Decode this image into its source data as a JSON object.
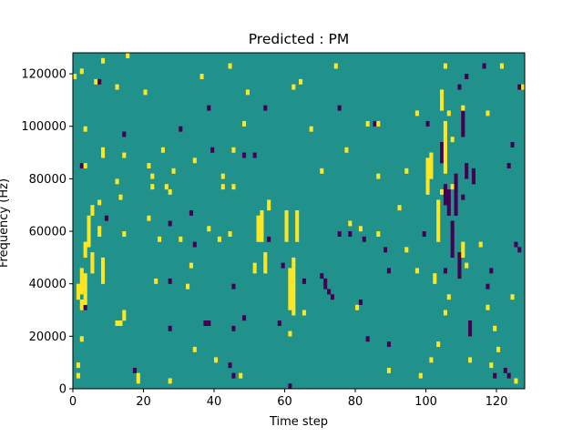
{
  "chart_data": {
    "type": "heatmap",
    "title": "Predicted : PM",
    "xlabel": "Time step",
    "ylabel": "Frequency (Hz)",
    "xlim": [
      0,
      128
    ],
    "ylim": [
      0,
      128000
    ],
    "x_ticks": [
      0,
      20,
      40,
      60,
      80,
      100,
      120
    ],
    "x_tick_labels": [
      "0",
      "20",
      "40",
      "60",
      "80",
      "100",
      "120"
    ],
    "y_ticks": [
      0,
      20000,
      40000,
      60000,
      80000,
      100000,
      120000
    ],
    "y_tick_labels": [
      "0",
      "20000",
      "40000",
      "60000",
      "80000",
      "100000",
      "120000"
    ],
    "grid": false,
    "legend": "none",
    "colormap": "viridis",
    "value_levels": [
      -1,
      0,
      1
    ],
    "colors": {
      "-1": "#440154",
      "0": "#21918c",
      "1": "#fde725"
    },
    "background_value": 0,
    "n_time_steps": 128,
    "n_freq_bins": 64,
    "freq_bin_width": 2000,
    "cells_high": [
      [
        1,
        4
      ],
      [
        1,
        2
      ],
      [
        1,
        19
      ],
      [
        1,
        18
      ],
      [
        1,
        17
      ],
      [
        2,
        22
      ],
      [
        2,
        21
      ],
      [
        2,
        20
      ],
      [
        2,
        19
      ],
      [
        2,
        18
      ],
      [
        2,
        16
      ],
      [
        2,
        15
      ],
      [
        3,
        21
      ],
      [
        3,
        20
      ],
      [
        3,
        19
      ],
      [
        3,
        18
      ],
      [
        3,
        17
      ],
      [
        3,
        16
      ],
      [
        3,
        27
      ],
      [
        3,
        26
      ],
      [
        4,
        32
      ],
      [
        4,
        31
      ],
      [
        4,
        30
      ],
      [
        4,
        29
      ],
      [
        4,
        28
      ],
      [
        4,
        27
      ],
      [
        5,
        34
      ],
      [
        5,
        33
      ],
      [
        5,
        25
      ],
      [
        5,
        24
      ],
      [
        5,
        23
      ],
      [
        5,
        22
      ],
      [
        6,
        58
      ],
      [
        7,
        35
      ],
      [
        7,
        30
      ],
      [
        7,
        29
      ],
      [
        8,
        45
      ],
      [
        8,
        44
      ],
      [
        8,
        24
      ],
      [
        8,
        23
      ],
      [
        8,
        22
      ],
      [
        8,
        21
      ],
      [
        8,
        20
      ],
      [
        14,
        44
      ],
      [
        18,
        2
      ],
      [
        18,
        1
      ],
      [
        21,
        42
      ],
      [
        22,
        40
      ],
      [
        26,
        38
      ],
      [
        27,
        37
      ],
      [
        28,
        41
      ],
      [
        40,
        5
      ],
      [
        42,
        40
      ],
      [
        51,
        23
      ],
      [
        51,
        22
      ],
      [
        52,
        32
      ],
      [
        52,
        31
      ],
      [
        52,
        30
      ],
      [
        52,
        29
      ],
      [
        52,
        28
      ],
      [
        53,
        33
      ],
      [
        53,
        32
      ],
      [
        53,
        31
      ],
      [
        53,
        30
      ],
      [
        53,
        29
      ],
      [
        53,
        28
      ],
      [
        54,
        25
      ],
      [
        54,
        24
      ],
      [
        54,
        23
      ],
      [
        54,
        22
      ],
      [
        55,
        35
      ],
      [
        55,
        34
      ],
      [
        60,
        33
      ],
      [
        60,
        32
      ],
      [
        60,
        31
      ],
      [
        60,
        30
      ],
      [
        60,
        29
      ],
      [
        60,
        28
      ],
      [
        61,
        22
      ],
      [
        61,
        21
      ],
      [
        61,
        20
      ],
      [
        61,
        19
      ],
      [
        61,
        18
      ],
      [
        61,
        17
      ],
      [
        61,
        16
      ],
      [
        61,
        15
      ],
      [
        62,
        24
      ],
      [
        62,
        23
      ],
      [
        62,
        22
      ],
      [
        62,
        21
      ],
      [
        62,
        20
      ],
      [
        62,
        19
      ],
      [
        62,
        18
      ],
      [
        62,
        17
      ],
      [
        62,
        16
      ],
      [
        62,
        15
      ],
      [
        62,
        14
      ],
      [
        63,
        33
      ],
      [
        63,
        32
      ],
      [
        63,
        31
      ],
      [
        63,
        30
      ],
      [
        63,
        29
      ],
      [
        63,
        28
      ],
      [
        100,
        43
      ],
      [
        100,
        42
      ],
      [
        100,
        41
      ],
      [
        100,
        40
      ],
      [
        100,
        39
      ],
      [
        100,
        38
      ],
      [
        100,
        37
      ],
      [
        101,
        44
      ],
      [
        101,
        43
      ],
      [
        101,
        42
      ],
      [
        101,
        41
      ],
      [
        101,
        40
      ],
      [
        102,
        21
      ],
      [
        102,
        20
      ],
      [
        103,
        35
      ],
      [
        103,
        34
      ],
      [
        103,
        33
      ],
      [
        103,
        32
      ],
      [
        103,
        31
      ],
      [
        103,
        30
      ],
      [
        103,
        29
      ],
      [
        103,
        28
      ],
      [
        104,
        56
      ],
      [
        104,
        55
      ],
      [
        104,
        54
      ],
      [
        104,
        53
      ],
      [
        105,
        50
      ],
      [
        105,
        49
      ],
      [
        105,
        48
      ],
      [
        105,
        47
      ],
      [
        105,
        46
      ],
      [
        105,
        45
      ],
      [
        105,
        44
      ],
      [
        105,
        43
      ],
      [
        105,
        42
      ],
      [
        105,
        41
      ],
      [
        110,
        27
      ],
      [
        110,
        26
      ],
      [
        110,
        25
      ]
    ],
    "cells_low": [
      [
        37,
        12
      ],
      [
        38,
        12
      ],
      [
        44,
        4
      ],
      [
        45,
        2
      ],
      [
        70,
        21
      ],
      [
        71,
        20
      ],
      [
        71,
        19
      ],
      [
        72,
        18
      ],
      [
        73,
        17
      ],
      [
        89,
        8
      ],
      [
        104,
        46
      ],
      [
        104,
        45
      ],
      [
        104,
        44
      ],
      [
        104,
        43
      ],
      [
        105,
        38
      ],
      [
        105,
        37
      ],
      [
        105,
        36
      ],
      [
        105,
        35
      ],
      [
        106,
        37
      ],
      [
        106,
        36
      ],
      [
        106,
        35
      ],
      [
        106,
        34
      ],
      [
        106,
        33
      ],
      [
        107,
        31
      ],
      [
        107,
        30
      ],
      [
        107,
        29
      ],
      [
        107,
        28
      ],
      [
        107,
        27
      ],
      [
        107,
        26
      ],
      [
        107,
        25
      ],
      [
        108,
        40
      ],
      [
        108,
        39
      ],
      [
        108,
        38
      ],
      [
        108,
        37
      ],
      [
        108,
        36
      ],
      [
        108,
        35
      ],
      [
        108,
        34
      ],
      [
        108,
        33
      ],
      [
        109,
        25
      ],
      [
        109,
        24
      ],
      [
        109,
        23
      ],
      [
        109,
        22
      ],
      [
        109,
        21
      ],
      [
        110,
        52
      ],
      [
        110,
        51
      ],
      [
        110,
        50
      ],
      [
        110,
        49
      ],
      [
        110,
        48
      ],
      [
        111,
        42
      ],
      [
        111,
        41
      ],
      [
        111,
        40
      ],
      [
        112,
        12
      ],
      [
        112,
        11
      ],
      [
        112,
        10
      ],
      [
        113,
        41
      ],
      [
        113,
        40
      ],
      [
        113,
        39
      ],
      [
        116,
        61
      ],
      [
        117,
        19
      ],
      [
        118,
        22
      ],
      [
        122,
        3
      ],
      [
        123,
        2
      ],
      [
        125,
        27
      ],
      [
        126,
        26
      ]
    ],
    "scatter_seed": 7,
    "scatter_high_density": 0.012,
    "scatter_low_density": 0.006
  }
}
